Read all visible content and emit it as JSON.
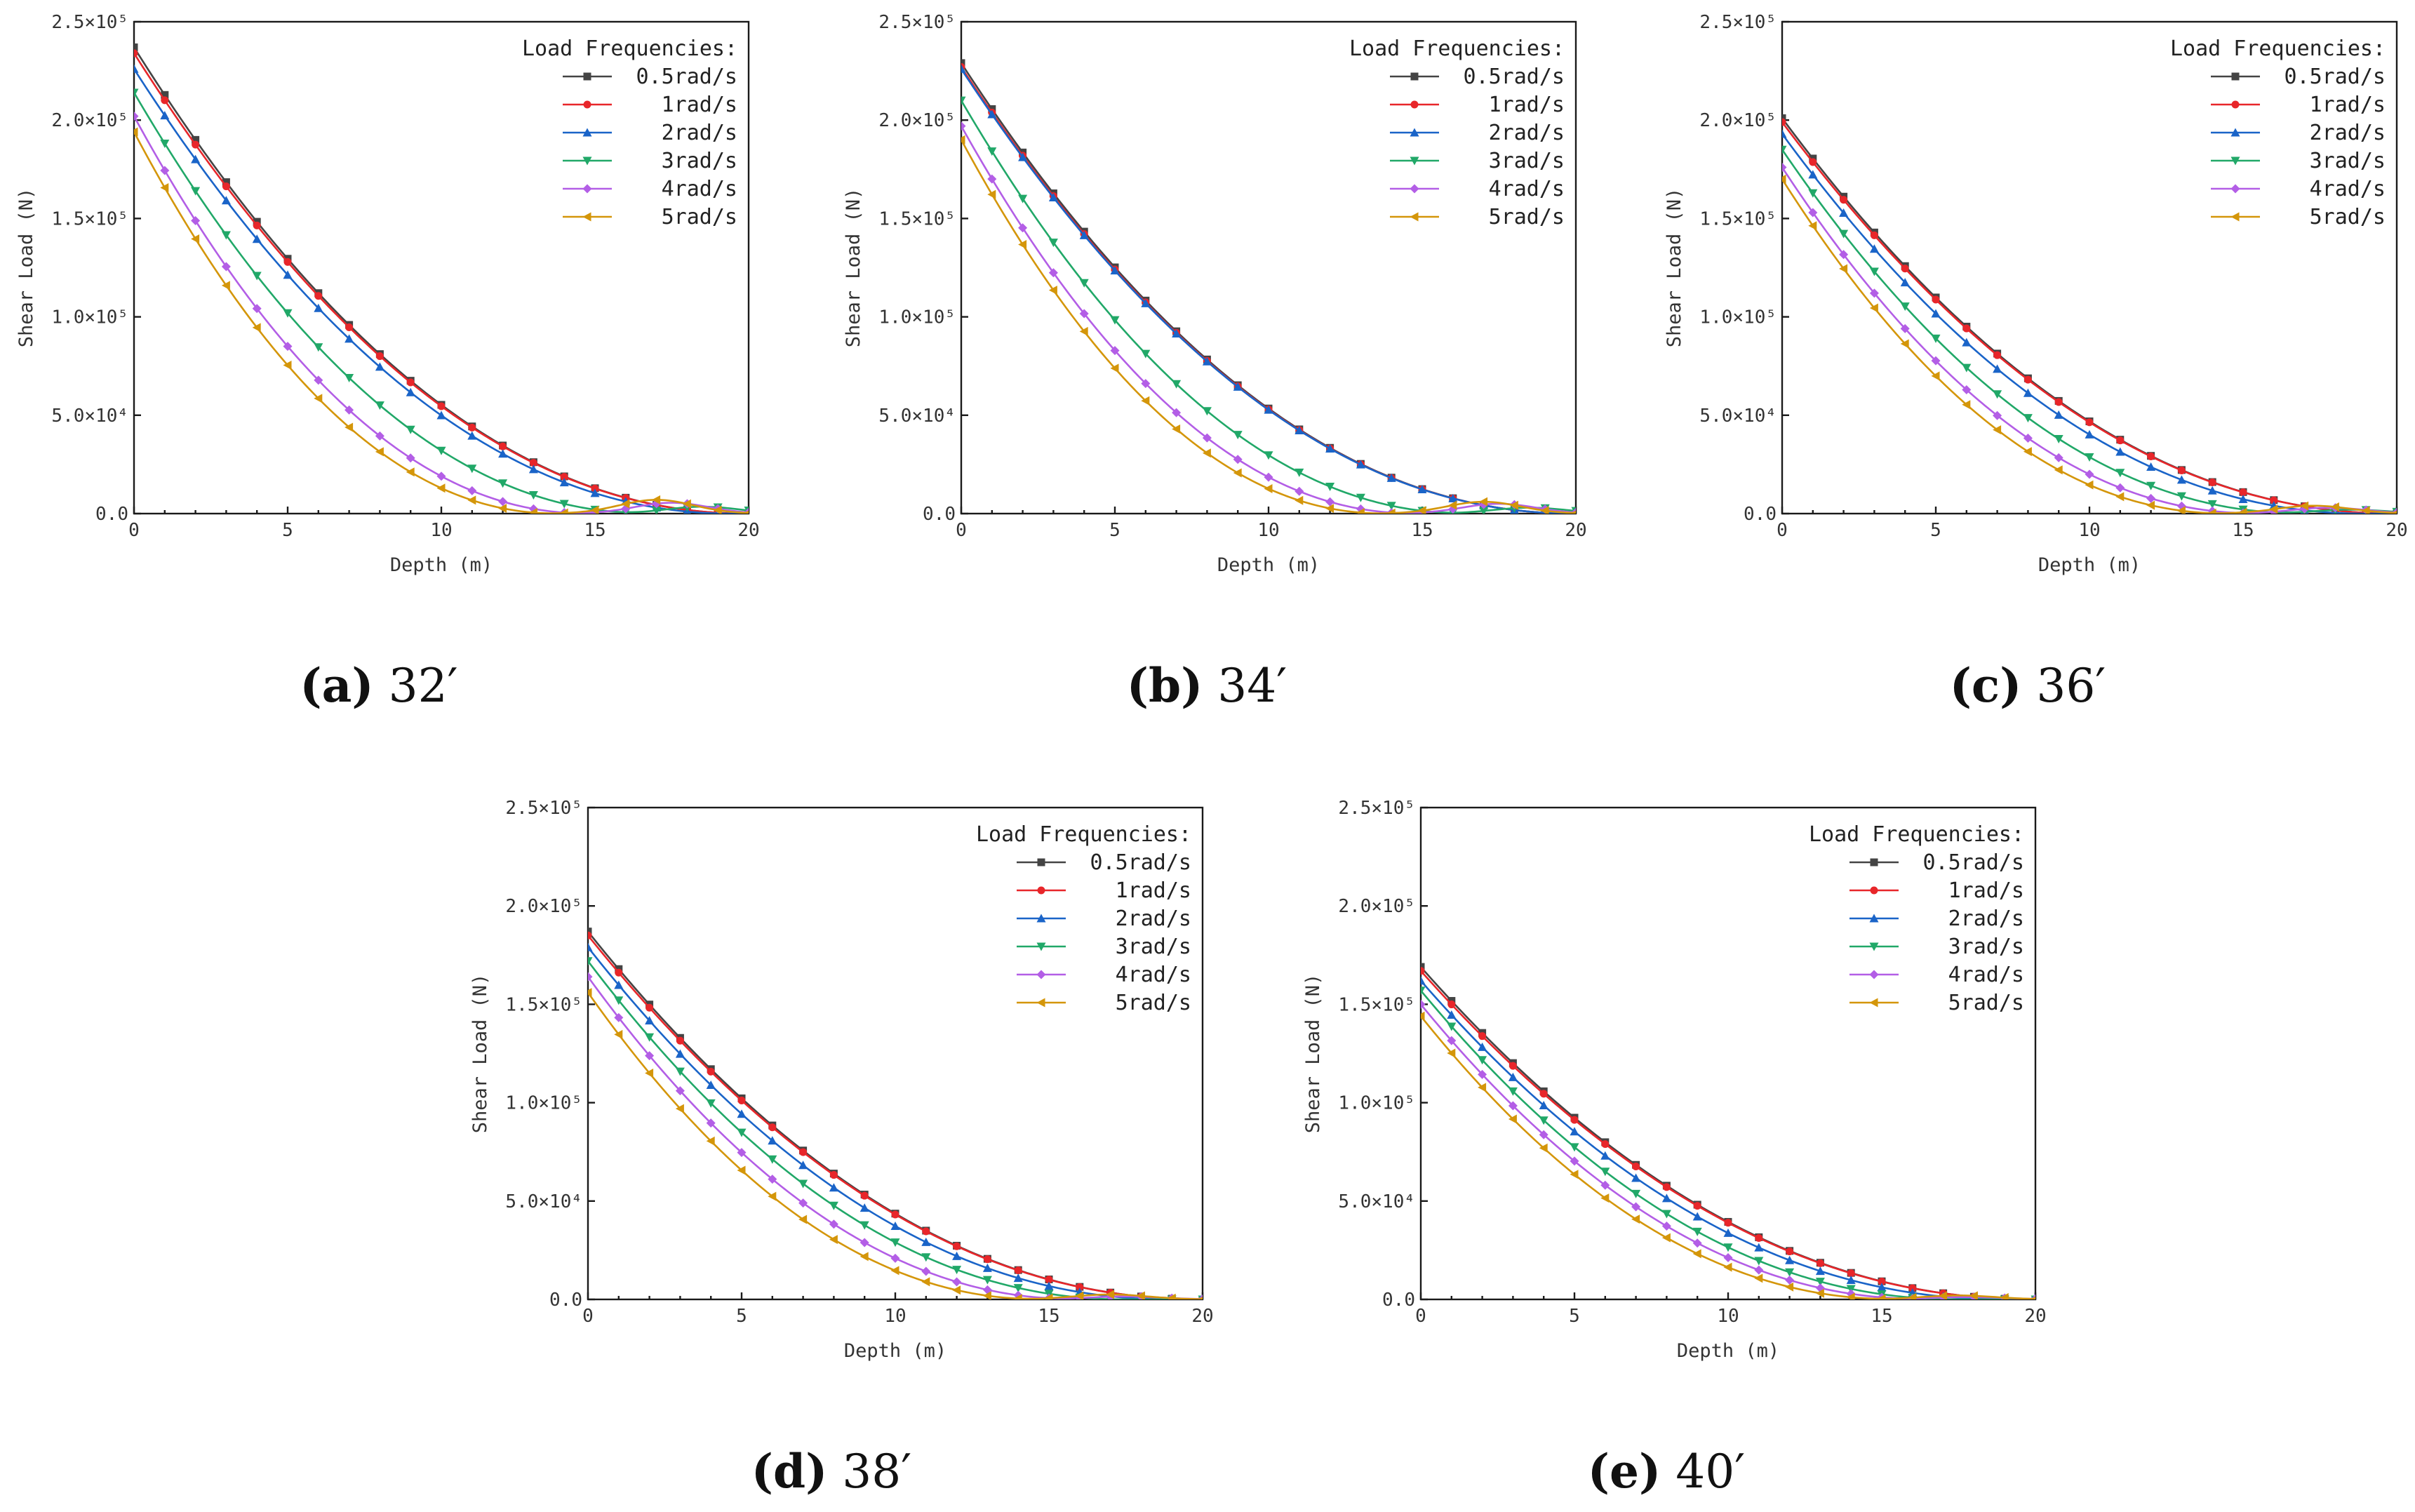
{
  "figure": {
    "legend_title": "Load Frequencies:",
    "y_tick_labels": [
      "0.0",
      "5.0×10⁴",
      "1.0×10⁵",
      "1.5×10⁵",
      "2.0×10⁵",
      "2.5×10⁵"
    ],
    "x_tick_labels": [
      "0",
      "5",
      "10",
      "15",
      "20"
    ],
    "series_colors": [
      "#444444",
      "#e8262a",
      "#1a64c8",
      "#21a868",
      "#b35ee6",
      "#d4960a"
    ]
  },
  "chart_data": [
    {
      "type": "line",
      "panel": "a",
      "caption_letter": "(a)",
      "caption_value": "32′",
      "title": "",
      "xlabel": "Depth (m)",
      "ylabel": "Shear Load (N)",
      "xlim": [
        0,
        20
      ],
      "ylim": [
        0,
        250000
      ],
      "legend_title": "Load Frequencies:",
      "legend_position": "top-right",
      "series": [
        {
          "name": "0.5rad/s",
          "color": "#444444",
          "marker": "square",
          "y0": 237000,
          "zero_depth": 20.0,
          "tail_peak": 0,
          "tail_depth": 0
        },
        {
          "name": "1rad/s",
          "color": "#e8262a",
          "marker": "circle",
          "y0": 234000,
          "zero_depth": 20.0,
          "tail_peak": 0,
          "tail_depth": 0
        },
        {
          "name": "2rad/s",
          "color": "#1a64c8",
          "marker": "triangle-up",
          "y0": 226000,
          "zero_depth": 19.5,
          "tail_peak": 0,
          "tail_depth": 0
        },
        {
          "name": "3rad/s",
          "color": "#21a868",
          "marker": "triangle-down",
          "y0": 214000,
          "zero_depth": 16.8,
          "tail_peak": 3500,
          "tail_depth": 18.5
        },
        {
          "name": "4rad/s",
          "color": "#b35ee6",
          "marker": "diamond",
          "y0": 202000,
          "zero_depth": 14.8,
          "tail_peak": 5500,
          "tail_depth": 17.5
        },
        {
          "name": "5rad/s",
          "color": "#d4960a",
          "marker": "triangle-left",
          "y0": 194000,
          "zero_depth": 13.8,
          "tail_peak": 7000,
          "tail_depth": 17.0
        }
      ]
    },
    {
      "type": "line",
      "panel": "b",
      "caption_letter": "(b)",
      "caption_value": "34′",
      "title": "",
      "xlabel": "Depth (m)",
      "ylabel": "Shear Load (N)",
      "xlim": [
        0,
        20
      ],
      "ylim": [
        0,
        250000
      ],
      "legend_title": "Load Frequencies:",
      "legend_position": "top-right",
      "series": [
        {
          "name": "0.5rad/s",
          "color": "#444444",
          "marker": "square",
          "y0": 229000,
          "zero_depth": 20.0,
          "tail_peak": 0,
          "tail_depth": 0
        },
        {
          "name": "1rad/s",
          "color": "#e8262a",
          "marker": "circle",
          "y0": 227000,
          "zero_depth": 20.0,
          "tail_peak": 0,
          "tail_depth": 0
        },
        {
          "name": "2rad/s",
          "color": "#1a64c8",
          "marker": "triangle-up",
          "y0": 226000,
          "zero_depth": 20.0,
          "tail_peak": 0,
          "tail_depth": 0
        },
        {
          "name": "3rad/s",
          "color": "#21a868",
          "marker": "triangle-down",
          "y0": 210000,
          "zero_depth": 16.5,
          "tail_peak": 3000,
          "tail_depth": 18.5
        },
        {
          "name": "4rad/s",
          "color": "#b35ee6",
          "marker": "diamond",
          "y0": 197000,
          "zero_depth": 14.8,
          "tail_peak": 5000,
          "tail_depth": 17.5
        },
        {
          "name": "5rad/s",
          "color": "#d4960a",
          "marker": "triangle-left",
          "y0": 190000,
          "zero_depth": 13.8,
          "tail_peak": 6000,
          "tail_depth": 17.0
        }
      ]
    },
    {
      "type": "line",
      "panel": "c",
      "caption_letter": "(c)",
      "caption_value": "36′",
      "title": "",
      "xlabel": "Depth (m)",
      "ylabel": "Shear Load (N)",
      "xlim": [
        0,
        20
      ],
      "ylim": [
        0,
        250000
      ],
      "legend_title": "Load Frequencies:",
      "legend_position": "top-right",
      "series": [
        {
          "name": "0.5rad/s",
          "color": "#444444",
          "marker": "square",
          "y0": 201000,
          "zero_depth": 20.0,
          "tail_peak": 0,
          "tail_depth": 0
        },
        {
          "name": "1rad/s",
          "color": "#e8262a",
          "marker": "circle",
          "y0": 199000,
          "zero_depth": 20.0,
          "tail_peak": 0,
          "tail_depth": 0
        },
        {
          "name": "2rad/s",
          "color": "#1a64c8",
          "marker": "triangle-up",
          "y0": 193000,
          "zero_depth": 19.0,
          "tail_peak": 0,
          "tail_depth": 0
        },
        {
          "name": "3rad/s",
          "color": "#21a868",
          "marker": "triangle-down",
          "y0": 185000,
          "zero_depth": 17.0,
          "tail_peak": 2000,
          "tail_depth": 18.5
        },
        {
          "name": "4rad/s",
          "color": "#b35ee6",
          "marker": "diamond",
          "y0": 176000,
          "zero_depth": 15.5,
          "tail_peak": 3000,
          "tail_depth": 17.8
        },
        {
          "name": "5rad/s",
          "color": "#d4960a",
          "marker": "triangle-left",
          "y0": 170000,
          "zero_depth": 14.5,
          "tail_peak": 4000,
          "tail_depth": 17.3
        }
      ]
    },
    {
      "type": "line",
      "panel": "d",
      "caption_letter": "(d)",
      "caption_value": "38′",
      "title": "",
      "xlabel": "Depth (m)",
      "ylabel": "Shear Load (N)",
      "xlim": [
        0,
        20
      ],
      "ylim": [
        0,
        250000
      ],
      "legend_title": "Load Frequencies:",
      "legend_position": "top-right",
      "series": [
        {
          "name": "0.5rad/s",
          "color": "#444444",
          "marker": "square",
          "y0": 187000,
          "zero_depth": 20.0,
          "tail_peak": 0,
          "tail_depth": 0
        },
        {
          "name": "1rad/s",
          "color": "#e8262a",
          "marker": "circle",
          "y0": 185000,
          "zero_depth": 20.0,
          "tail_peak": 0,
          "tail_depth": 0
        },
        {
          "name": "2rad/s",
          "color": "#1a64c8",
          "marker": "triangle-up",
          "y0": 179000,
          "zero_depth": 19.0,
          "tail_peak": 0,
          "tail_depth": 0
        },
        {
          "name": "3rad/s",
          "color": "#21a868",
          "marker": "triangle-down",
          "y0": 172000,
          "zero_depth": 17.5,
          "tail_peak": 0,
          "tail_depth": 0
        },
        {
          "name": "4rad/s",
          "color": "#b35ee6",
          "marker": "diamond",
          "y0": 164000,
          "zero_depth": 16.0,
          "tail_peak": 1500,
          "tail_depth": 17.5
        },
        {
          "name": "5rad/s",
          "color": "#d4960a",
          "marker": "triangle-left",
          "y0": 156000,
          "zero_depth": 14.8,
          "tail_peak": 2500,
          "tail_depth": 17.0
        }
      ]
    },
    {
      "type": "line",
      "panel": "e",
      "caption_letter": "(e)",
      "caption_value": "40′",
      "title": "",
      "xlabel": "Depth (m)",
      "ylabel": "Shear Load (N)",
      "xlim": [
        0,
        20
      ],
      "ylim": [
        0,
        250000
      ],
      "legend_title": "Load Frequencies:",
      "legend_position": "top-right",
      "series": [
        {
          "name": "0.5rad/s",
          "color": "#444444",
          "marker": "square",
          "y0": 169000,
          "zero_depth": 20.0,
          "tail_peak": 0,
          "tail_depth": 0
        },
        {
          "name": "1rad/s",
          "color": "#e8262a",
          "marker": "circle",
          "y0": 167000,
          "zero_depth": 20.0,
          "tail_peak": 0,
          "tail_depth": 0
        },
        {
          "name": "2rad/s",
          "color": "#1a64c8",
          "marker": "triangle-up",
          "y0": 162000,
          "zero_depth": 19.0,
          "tail_peak": 0,
          "tail_depth": 0
        },
        {
          "name": "3rad/s",
          "color": "#21a868",
          "marker": "triangle-down",
          "y0": 157000,
          "zero_depth": 17.5,
          "tail_peak": 0,
          "tail_depth": 0
        },
        {
          "name": "4rad/s",
          "color": "#b35ee6",
          "marker": "diamond",
          "y0": 150000,
          "zero_depth": 16.5,
          "tail_peak": 1200,
          "tail_depth": 17.8
        },
        {
          "name": "5rad/s",
          "color": "#d4960a",
          "marker": "triangle-left",
          "y0": 144000,
          "zero_depth": 15.5,
          "tail_peak": 2000,
          "tail_depth": 17.5
        }
      ]
    }
  ]
}
